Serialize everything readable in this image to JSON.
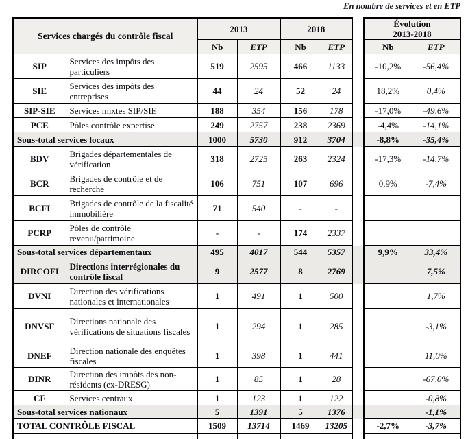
{
  "note": "En nombre de services et en ETP",
  "table": {
    "header": {
      "col1": "Services chargés du contrôle fiscal",
      "year1": "2013",
      "year2": "2018",
      "evolution_title": "Évolution",
      "evolution_period": "2013-2018",
      "nb": "Nb",
      "etp": "ETP"
    },
    "rows": [
      {
        "type": "data",
        "acronym": "SIP",
        "label": "Services des impôts des particuliers",
        "nb2013": "519",
        "etp2013": "2595",
        "nb2018": "466",
        "etp2018": "1133",
        "evo_nb": "-10,2%",
        "evo_etp": "-56,4%"
      },
      {
        "type": "data",
        "acronym": "SIE",
        "label": "Services des impôts des entreprises",
        "nb2013": "44",
        "etp2013": "24",
        "nb2018": "52",
        "etp2018": "24",
        "evo_nb": "18,2%",
        "evo_etp": "0,4%"
      },
      {
        "type": "data",
        "acronym": "SIP-SIE",
        "label": "Services mixtes SIP/SIE",
        "nb2013": "188",
        "etp2013": "354",
        "nb2018": "156",
        "etp2018": "178",
        "evo_nb": "-17,0%",
        "evo_etp": "-49,6%"
      },
      {
        "type": "data",
        "acronym": "PCE",
        "label": "Pôles contrôle expertise",
        "nb2013": "249",
        "etp2013": "2757",
        "nb2018": "238",
        "etp2018": "2369",
        "evo_nb": "-4,4%",
        "evo_etp": "-14,1%"
      },
      {
        "type": "subtotal",
        "label": "Sous-total services locaux",
        "nb2013": "1000",
        "etp2013": "5730",
        "nb2018": "912",
        "etp2018": "3704",
        "evo_nb": "-8,8%",
        "evo_etp": "-35,4%"
      },
      {
        "type": "data",
        "acronym": "BDV",
        "label": "Brigades départementales de vérification",
        "nb2013": "318",
        "etp2013": "2725",
        "nb2018": "263",
        "etp2018": "2324",
        "evo_nb": "-17,3%",
        "evo_etp": "-14,7%"
      },
      {
        "type": "data",
        "acronym": "BCR",
        "label": "Brigades de contrôle et de recherche",
        "nb2013": "106",
        "etp2013": "751",
        "nb2018": "107",
        "etp2018": "696",
        "evo_nb": "0,9%",
        "evo_etp": "-7,4%"
      },
      {
        "type": "data",
        "acronym": "BCFI",
        "label": "Brigades de contrôle de la fiscalité immobilière",
        "nb2013": "71",
        "etp2013": "540",
        "nb2018": "-",
        "etp2018": "-",
        "evo_nb": "",
        "evo_etp": ""
      },
      {
        "type": "data",
        "acronym": "PCRP",
        "label": "Pôles de contrôle revenu/patrimoine",
        "nb2013": "-",
        "etp2013": "-",
        "nb2018": "174",
        "etp2018": "2337",
        "evo_nb": "",
        "evo_etp": ""
      },
      {
        "type": "subtotal",
        "label": "Sous-total services départementaux",
        "nb2013": "495",
        "etp2013": "4017",
        "nb2018": "544",
        "etp2018": "5357",
        "evo_nb": "9,9%",
        "evo_etp": "33,4%"
      },
      {
        "type": "highlight",
        "acronym": "DIRCOFI",
        "label": "Directions interrégionales du contrôle fiscal",
        "nb2013": "9",
        "etp2013": "2577",
        "nb2018": "8",
        "etp2018": "2769",
        "evo_nb": "",
        "evo_etp": "7,5%"
      },
      {
        "type": "data",
        "acronym": "DVNI",
        "label": "Direction des vérifications nationales et internationales",
        "nb2013": "1",
        "etp2013": "491",
        "nb2018": "1",
        "etp2018": "500",
        "evo_nb": "",
        "evo_etp": "1,7%"
      },
      {
        "type": "data",
        "acronym": "DNVSF",
        "label": "Directions nationale des vérifications de situations fiscales",
        "nb2013": "1",
        "etp2013": "294",
        "nb2018": "1",
        "etp2018": "285",
        "evo_nb": "",
        "evo_etp": "-3,1%"
      },
      {
        "type": "data",
        "acronym": "DNEF",
        "label": "Direction nationale des enquêtes fiscales",
        "nb2013": "1",
        "etp2013": "398",
        "nb2018": "1",
        "etp2018": "441",
        "evo_nb": "",
        "evo_etp": "11,0%"
      },
      {
        "type": "data",
        "acronym": "DINR",
        "label": "Direction des impôts des non-résidents (ex-DRESG)",
        "nb2013": "1",
        "etp2013": "85",
        "nb2018": "1",
        "etp2018": "28",
        "evo_nb": "",
        "evo_etp": "-67,0%"
      },
      {
        "type": "data",
        "acronym": "CF",
        "label": "Services centraux",
        "nb2013": "1",
        "etp2013": "123",
        "nb2018": "1",
        "etp2018": "122",
        "evo_nb": "",
        "evo_etp": "-0,8%"
      },
      {
        "type": "subtotal",
        "label": "Sous-total services nationaux",
        "nb2013": "5",
        "etp2013": "1391",
        "nb2018": "5",
        "etp2018": "1376",
        "evo_nb": "",
        "evo_etp": "-1,1%"
      },
      {
        "type": "total",
        "label": "TOTAL CONTRÔLE FISCAL",
        "nb2013": "1509",
        "etp2013": "13714",
        "nb2018": "1469",
        "etp2018": "13205",
        "evo_nb": "-2,7%",
        "evo_etp": "-3,7%"
      }
    ]
  }
}
